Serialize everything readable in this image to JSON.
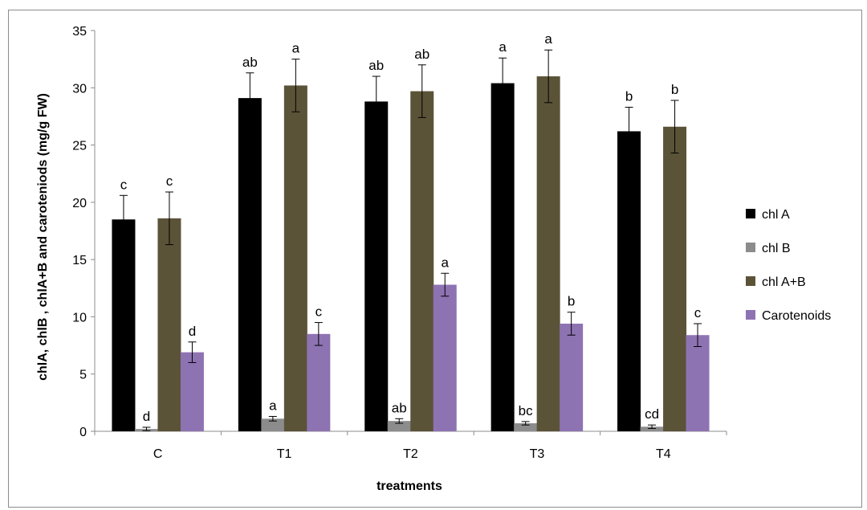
{
  "chart_data": {
    "type": "bar",
    "title": "",
    "xlabel": "treatments",
    "ylabel": "chlA, chlB , chlA+B and caroteniods (mg/g FW)",
    "ylim": [
      0,
      35
    ],
    "yticks": [
      0,
      5,
      10,
      15,
      20,
      25,
      30,
      35
    ],
    "grid": false,
    "legend_position": "right",
    "categories": [
      "C",
      "T1",
      "T2",
      "T3",
      "T4"
    ],
    "series": [
      {
        "name": "chl A",
        "color": "#000000",
        "values": [
          18.5,
          29.1,
          28.8,
          30.4,
          26.2
        ],
        "errors": [
          2.1,
          2.2,
          2.2,
          2.2,
          2.1
        ],
        "letters": [
          "c",
          "ab",
          "ab",
          "a",
          "b"
        ]
      },
      {
        "name": "chl B",
        "color": "#8c8c8c",
        "values": [
          0.2,
          1.1,
          0.9,
          0.7,
          0.4
        ],
        "errors": [
          0.15,
          0.2,
          0.2,
          0.15,
          0.15
        ],
        "letters": [
          "d",
          "a",
          "ab",
          "bc",
          "cd"
        ]
      },
      {
        "name": "chl A+B",
        "color": "#5b5338",
        "values": [
          18.6,
          30.2,
          29.7,
          31.0,
          26.6
        ],
        "errors": [
          2.3,
          2.3,
          2.3,
          2.3,
          2.3
        ],
        "letters": [
          "c",
          "a",
          "ab",
          "a",
          "b"
        ]
      },
      {
        "name": "Carotenoids",
        "color": "#8e73b3",
        "values": [
          6.9,
          8.5,
          12.8,
          9.4,
          8.4
        ],
        "errors": [
          0.9,
          1.0,
          1.0,
          1.0,
          1.0
        ],
        "letters": [
          "d",
          "c",
          "a",
          "b",
          "c"
        ]
      }
    ]
  }
}
